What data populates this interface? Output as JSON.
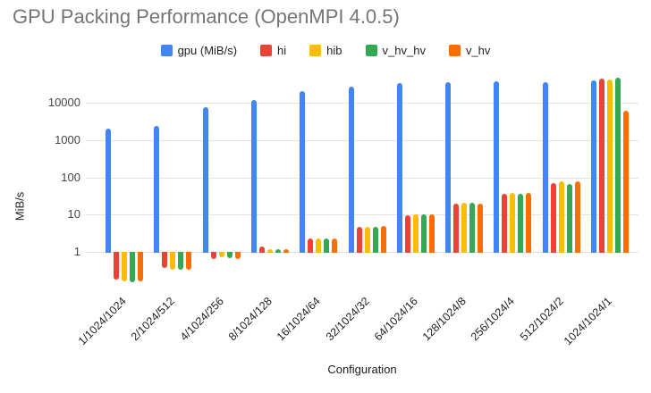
{
  "chart": {
    "title": "GPU Packing Performance (OpenMPI 4.0.5)",
    "xlabel": "Configuration",
    "ylabel": "MiB/s"
  },
  "chart_data": {
    "type": "bar",
    "title": "GPU Packing Performance (OpenMPI 4.0.5)",
    "xlabel": "Configuration",
    "ylabel": "MiB/s",
    "y_scale": "log",
    "y_ticks": [
      1,
      10,
      100,
      1000,
      10000
    ],
    "ylim": [
      0.1,
      60000
    ],
    "grid": true,
    "legend_position": "top",
    "categories": [
      "1/1024/1024",
      "2/1024/512",
      "4/1024/256",
      "8/1024/128",
      "16/1024/64",
      "32/1024/32",
      "64/1024/16",
      "128/1024/8",
      "256/1024/4",
      "512/1024/2",
      "1024/1024/1"
    ],
    "series": [
      {
        "name": "gpu (MiB/s)",
        "color": "#4285F4",
        "values": [
          2000,
          2450,
          7500,
          11500,
          20000,
          27000,
          34000,
          36000,
          38000,
          36000,
          40000
        ]
      },
      {
        "name": "hi",
        "color": "#EA4335",
        "values": [
          0.18,
          0.37,
          0.64,
          1.4,
          2.3,
          4.8,
          9.8,
          19.5,
          36,
          70,
          45000
        ]
      },
      {
        "name": "hib",
        "color": "#FBBC04",
        "values": [
          0.165,
          0.34,
          0.72,
          1.2,
          2.3,
          4.6,
          10,
          20.5,
          38,
          77,
          41000
        ]
      },
      {
        "name": "v_hv_hv",
        "color": "#34A853",
        "values": [
          0.15,
          0.33,
          0.68,
          1.18,
          2.3,
          4.8,
          10,
          20.5,
          37,
          66,
          48000
        ]
      },
      {
        "name": "v_hv",
        "color": "#FF6D01",
        "values": [
          0.165,
          0.34,
          0.66,
          1.2,
          2.35,
          4.9,
          9.9,
          20,
          39,
          77,
          6100
        ]
      }
    ]
  }
}
